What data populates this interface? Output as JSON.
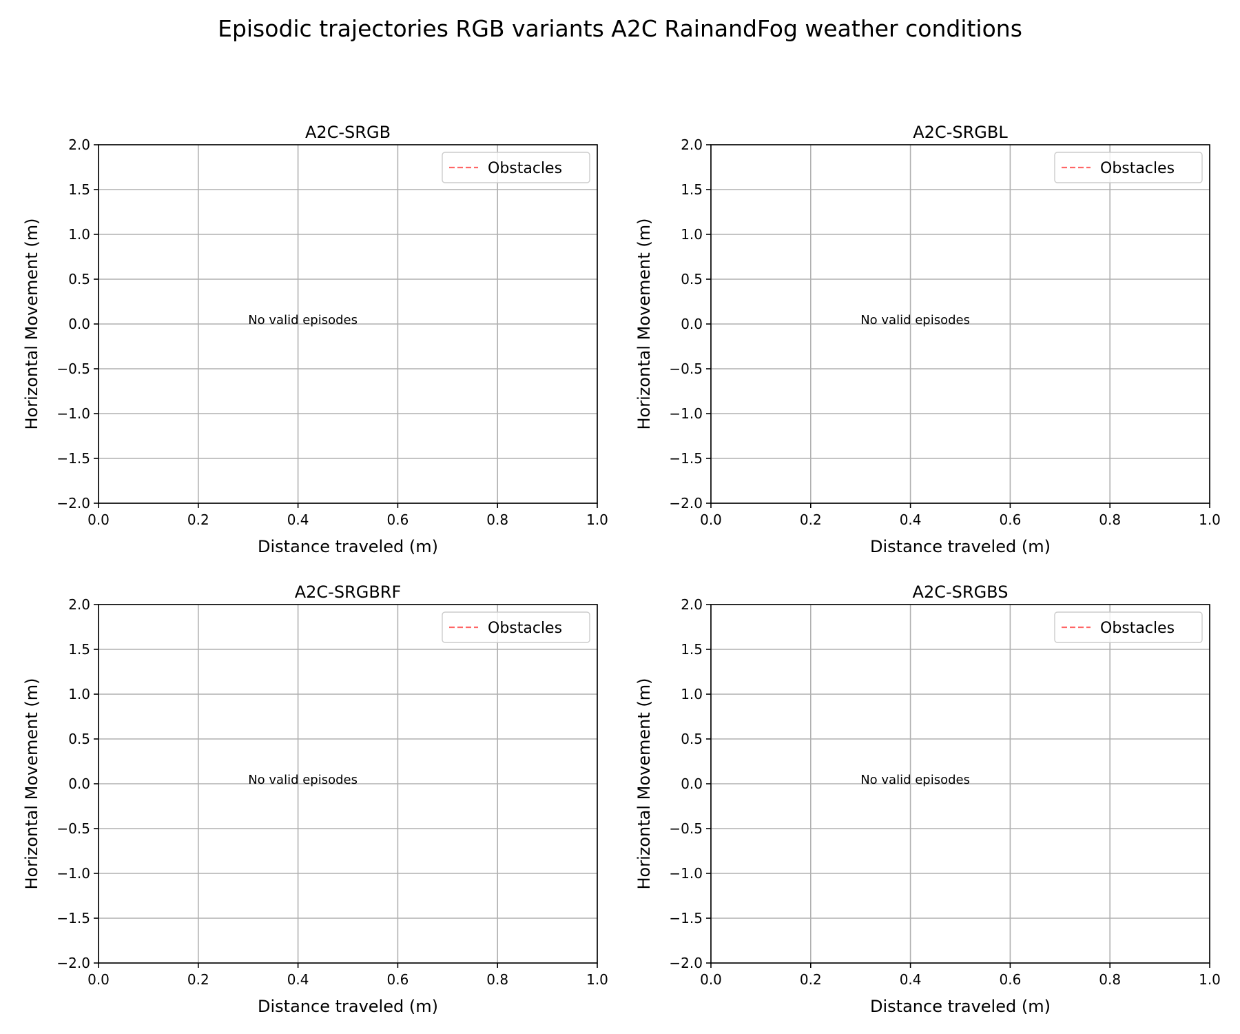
{
  "figure": {
    "title": "Episodic trajectories RGB variants A2C RainandFog weather conditions"
  },
  "colors": {
    "obstacle_line": "#ff6666",
    "grid": "#b0b0b0",
    "axis": "#000000"
  },
  "chart_data": [
    {
      "type": "line",
      "title": "A2C-SRGB",
      "xlabel": "Distance traveled (m)",
      "ylabel": "Horizontal Movement (m)",
      "xlim": [
        0.0,
        1.0
      ],
      "ylim": [
        -2.0,
        2.0
      ],
      "xticks": [
        0.0,
        0.2,
        0.4,
        0.6,
        0.8,
        1.0
      ],
      "xtick_labels": [
        "0.0",
        "0.2",
        "0.4",
        "0.6",
        "0.8",
        "1.0"
      ],
      "yticks": [
        -2.0,
        -1.5,
        -1.0,
        -0.5,
        0.0,
        0.5,
        1.0,
        1.5,
        2.0
      ],
      "ytick_labels": [
        "−2.0",
        "−1.5",
        "−1.0",
        "−0.5",
        "0.0",
        "0.5",
        "1.0",
        "1.5",
        "2.0"
      ],
      "grid": true,
      "legend": {
        "placement": "upper-right",
        "entries": [
          {
            "label": "Obstacles",
            "style": "dashed"
          }
        ]
      },
      "series": [],
      "annotation": {
        "text": "No valid episodes",
        "x": 0.3,
        "y": 0.0
      }
    },
    {
      "type": "line",
      "title": "A2C-SRGBL",
      "xlabel": "Distance traveled (m)",
      "ylabel": "Horizontal Movement (m)",
      "xlim": [
        0.0,
        1.0
      ],
      "ylim": [
        -2.0,
        2.0
      ],
      "xticks": [
        0.0,
        0.2,
        0.4,
        0.6,
        0.8,
        1.0
      ],
      "xtick_labels": [
        "0.0",
        "0.2",
        "0.4",
        "0.6",
        "0.8",
        "1.0"
      ],
      "yticks": [
        -2.0,
        -1.5,
        -1.0,
        -0.5,
        0.0,
        0.5,
        1.0,
        1.5,
        2.0
      ],
      "ytick_labels": [
        "−2.0",
        "−1.5",
        "−1.0",
        "−0.5",
        "0.0",
        "0.5",
        "1.0",
        "1.5",
        "2.0"
      ],
      "grid": true,
      "legend": {
        "placement": "upper-right",
        "entries": [
          {
            "label": "Obstacles",
            "style": "dashed"
          }
        ]
      },
      "series": [],
      "annotation": {
        "text": "No valid episodes",
        "x": 0.3,
        "y": 0.0
      }
    },
    {
      "type": "line",
      "title": "A2C-SRGBRF",
      "xlabel": "Distance traveled (m)",
      "ylabel": "Horizontal Movement (m)",
      "xlim": [
        0.0,
        1.0
      ],
      "ylim": [
        -2.0,
        2.0
      ],
      "xticks": [
        0.0,
        0.2,
        0.4,
        0.6,
        0.8,
        1.0
      ],
      "xtick_labels": [
        "0.0",
        "0.2",
        "0.4",
        "0.6",
        "0.8",
        "1.0"
      ],
      "yticks": [
        -2.0,
        -1.5,
        -1.0,
        -0.5,
        0.0,
        0.5,
        1.0,
        1.5,
        2.0
      ],
      "ytick_labels": [
        "−2.0",
        "−1.5",
        "−1.0",
        "−0.5",
        "0.0",
        "0.5",
        "1.0",
        "1.5",
        "2.0"
      ],
      "grid": true,
      "legend": {
        "placement": "upper-right",
        "entries": [
          {
            "label": "Obstacles",
            "style": "dashed"
          }
        ]
      },
      "series": [],
      "annotation": {
        "text": "No valid episodes",
        "x": 0.3,
        "y": 0.0
      }
    },
    {
      "type": "line",
      "title": "A2C-SRGBS",
      "xlabel": "Distance traveled (m)",
      "ylabel": "Horizontal Movement (m)",
      "xlim": [
        0.0,
        1.0
      ],
      "ylim": [
        -2.0,
        2.0
      ],
      "xticks": [
        0.0,
        0.2,
        0.4,
        0.6,
        0.8,
        1.0
      ],
      "xtick_labels": [
        "0.0",
        "0.2",
        "0.4",
        "0.6",
        "0.8",
        "1.0"
      ],
      "yticks": [
        -2.0,
        -1.5,
        -1.0,
        -0.5,
        0.0,
        0.5,
        1.0,
        1.5,
        2.0
      ],
      "ytick_labels": [
        "−2.0",
        "−1.5",
        "−1.0",
        "−0.5",
        "0.0",
        "0.5",
        "1.0",
        "1.5",
        "2.0"
      ],
      "grid": true,
      "legend": {
        "placement": "upper-right",
        "entries": [
          {
            "label": "Obstacles",
            "style": "dashed"
          }
        ]
      },
      "series": [],
      "annotation": {
        "text": "No valid episodes",
        "x": 0.3,
        "y": 0.0
      }
    }
  ]
}
